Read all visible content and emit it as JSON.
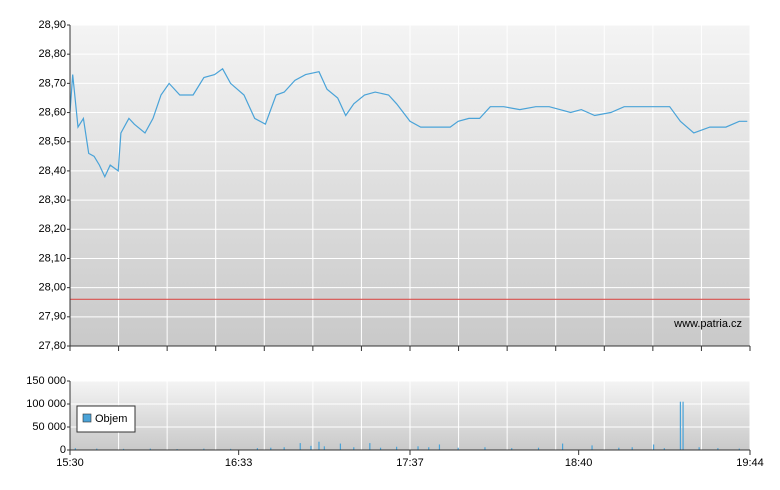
{
  "chart_data": [
    {
      "type": "line",
      "color": "#4aa3d8",
      "x": [
        "15:30",
        "15:31",
        "15:33",
        "15:35",
        "15:37",
        "15:39",
        "15:41",
        "15:43",
        "15:45",
        "15:48",
        "15:49",
        "15:52",
        "15:54",
        "15:58",
        "16:01",
        "16:04",
        "16:07",
        "16:11",
        "16:16",
        "16:20",
        "16:24",
        "16:27",
        "16:30",
        "16:35",
        "16:39",
        "16:43",
        "16:47",
        "16:50",
        "16:54",
        "16:58",
        "17:03",
        "17:06",
        "17:10",
        "17:13",
        "17:16",
        "17:20",
        "17:24",
        "17:29",
        "17:32",
        "17:37",
        "17:41",
        "17:46",
        "17:52",
        "17:55",
        "17:59",
        "18:03",
        "18:07",
        "18:12",
        "18:18",
        "18:24",
        "18:29",
        "18:33",
        "18:37",
        "18:41",
        "18:46",
        "18:52",
        "18:57",
        "19:03",
        "19:08",
        "19:14",
        "19:18",
        "19:23",
        "19:29",
        "19:35",
        "19:40",
        "19:43"
      ],
      "values": [
        28.6,
        28.73,
        28.55,
        28.58,
        28.46,
        28.45,
        28.42,
        28.38,
        28.42,
        28.4,
        28.53,
        28.58,
        28.56,
        28.53,
        28.58,
        28.66,
        28.7,
        28.66,
        28.66,
        28.72,
        28.73,
        28.75,
        28.7,
        28.66,
        28.58,
        28.56,
        28.66,
        28.67,
        28.71,
        28.73,
        28.74,
        28.68,
        28.65,
        28.59,
        28.63,
        28.66,
        28.67,
        28.66,
        28.63,
        28.57,
        28.55,
        28.55,
        28.55,
        28.57,
        28.58,
        28.58,
        28.62,
        28.62,
        28.61,
        28.62,
        28.62,
        28.61,
        28.6,
        28.61,
        28.59,
        28.6,
        28.62,
        28.62,
        28.62,
        28.62,
        28.57,
        28.53,
        28.55,
        28.55,
        28.57,
        28.57
      ],
      "reference_line": 27.96,
      "reference_color": "#d9534f",
      "xlim": [
        "15:30",
        "19:44"
      ],
      "ylim": [
        27.8,
        28.9
      ],
      "yticks": [
        {
          "value": 27.8,
          "label": "27,80"
        },
        {
          "value": 27.9,
          "label": "27,90"
        },
        {
          "value": 28.0,
          "label": "28,00"
        },
        {
          "value": 28.1,
          "label": "28,10"
        },
        {
          "value": 28.2,
          "label": "28,20"
        },
        {
          "value": 28.3,
          "label": "28,30"
        },
        {
          "value": 28.4,
          "label": "28,40"
        },
        {
          "value": 28.5,
          "label": "28,50"
        },
        {
          "value": 28.6,
          "label": "28,60"
        },
        {
          "value": 28.7,
          "label": "28,70"
        },
        {
          "value": 28.8,
          "label": "28,80"
        },
        {
          "value": 28.9,
          "label": "28,90"
        }
      ],
      "annotation": "www.patria.cz",
      "grid": true
    },
    {
      "type": "bar",
      "name": "Objem",
      "color": "#4aa3d8",
      "x": [
        "15:32",
        "15:40",
        "15:50",
        "16:00",
        "16:10",
        "16:20",
        "16:30",
        "16:40",
        "16:45",
        "16:50",
        "16:56",
        "17:00",
        "17:03",
        "17:05",
        "17:11",
        "17:16",
        "17:22",
        "17:26",
        "17:32",
        "17:40",
        "17:44",
        "17:48",
        "17:55",
        "18:05",
        "18:15",
        "18:25",
        "18:34",
        "18:45",
        "18:55",
        "19:00",
        "19:08",
        "19:12",
        "19:18",
        "19:19",
        "19:25",
        "19:32",
        "19:40"
      ],
      "values": [
        4000,
        3000,
        2500,
        3000,
        2000,
        3000,
        2500,
        4000,
        5000,
        6000,
        15000,
        9000,
        18000,
        8000,
        14000,
        6000,
        15000,
        5000,
        7000,
        8000,
        6000,
        12000,
        5000,
        6000,
        4000,
        5000,
        14000,
        10000,
        5000,
        6000,
        12000,
        4000,
        105000,
        105000,
        6000,
        4000,
        3000
      ],
      "xlim": [
        "15:30",
        "19:44"
      ],
      "xticks": [
        "15:30",
        "16:33",
        "17:37",
        "18:40",
        "19:44"
      ],
      "ylim": [
        0,
        150000
      ],
      "yticks": [
        {
          "value": 0,
          "label": "0"
        },
        {
          "value": 50000,
          "label": "50 000"
        },
        {
          "value": 100000,
          "label": "100 000"
        },
        {
          "value": 150000,
          "label": "150 000"
        }
      ],
      "grid": true
    }
  ]
}
